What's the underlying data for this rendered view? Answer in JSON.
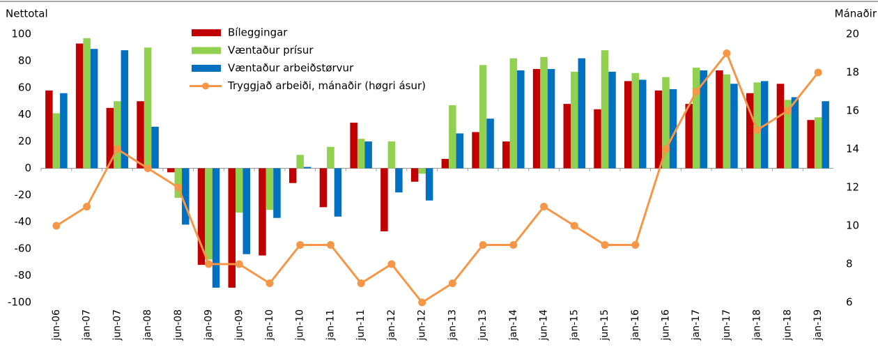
{
  "chart_data": {
    "type": "bar",
    "y_label": "Nettotal",
    "y2_label": "Mánaðir",
    "categories": [
      "jun-06",
      "jan-07",
      "jun-07",
      "jan-08",
      "jun-08",
      "jan-09",
      "jun-09",
      "jan-10",
      "jun-10",
      "jan-11",
      "jun-11",
      "jan-12",
      "jun-12",
      "jan-13",
      "jun-13",
      "jan-14",
      "jun-14",
      "jan-15",
      "jun-15",
      "jan-16",
      "jun-16",
      "jan-17",
      "jun-17",
      "jan-18",
      "jun-18",
      "jan-19"
    ],
    "series": [
      {
        "name": "Bíleggingar",
        "type": "bar",
        "color": "#c00000",
        "values": [
          58,
          93,
          45,
          50,
          -3,
          -72,
          -89,
          -65,
          -11,
          -29,
          34,
          -47,
          -10,
          7,
          27,
          20,
          74,
          48,
          44,
          65,
          58,
          48,
          73,
          56,
          63,
          36
        ]
      },
      {
        "name": "Væntaður prísur",
        "type": "bar",
        "color": "#92d050",
        "values": [
          41,
          97,
          50,
          90,
          -22,
          -68,
          -33,
          -31,
          10,
          16,
          22,
          20,
          -4,
          47,
          77,
          82,
          83,
          72,
          88,
          71,
          68,
          75,
          70,
          64,
          51,
          38
        ]
      },
      {
        "name": "Væntaður arbeiðstørvur",
        "type": "bar",
        "color": "#0070c0",
        "values": [
          56,
          89,
          88,
          31,
          -42,
          -89,
          -64,
          -37,
          1,
          -36,
          20,
          -18,
          -24,
          26,
          37,
          73,
          74,
          82,
          72,
          66,
          59,
          73,
          63,
          65,
          53,
          50
        ]
      },
      {
        "name": "Tryggjað arbeiði, mánaðir (høgri ásur)",
        "type": "line",
        "axis": "y2",
        "color": "#f79646",
        "values": [
          10,
          11,
          14,
          13,
          12,
          8,
          8,
          7,
          9,
          9,
          7,
          8,
          6,
          7,
          9,
          9,
          11,
          10,
          9,
          9,
          14,
          17,
          19,
          15,
          16,
          18
        ]
      }
    ],
    "ylim": [
      -100,
      100
    ],
    "yticks": [
      -100,
      -80,
      -60,
      -40,
      -20,
      0,
      20,
      40,
      60,
      80,
      100
    ],
    "y2lim": [
      6,
      20
    ],
    "y2ticks": [
      6,
      8,
      10,
      12,
      14,
      16,
      18,
      20
    ]
  }
}
